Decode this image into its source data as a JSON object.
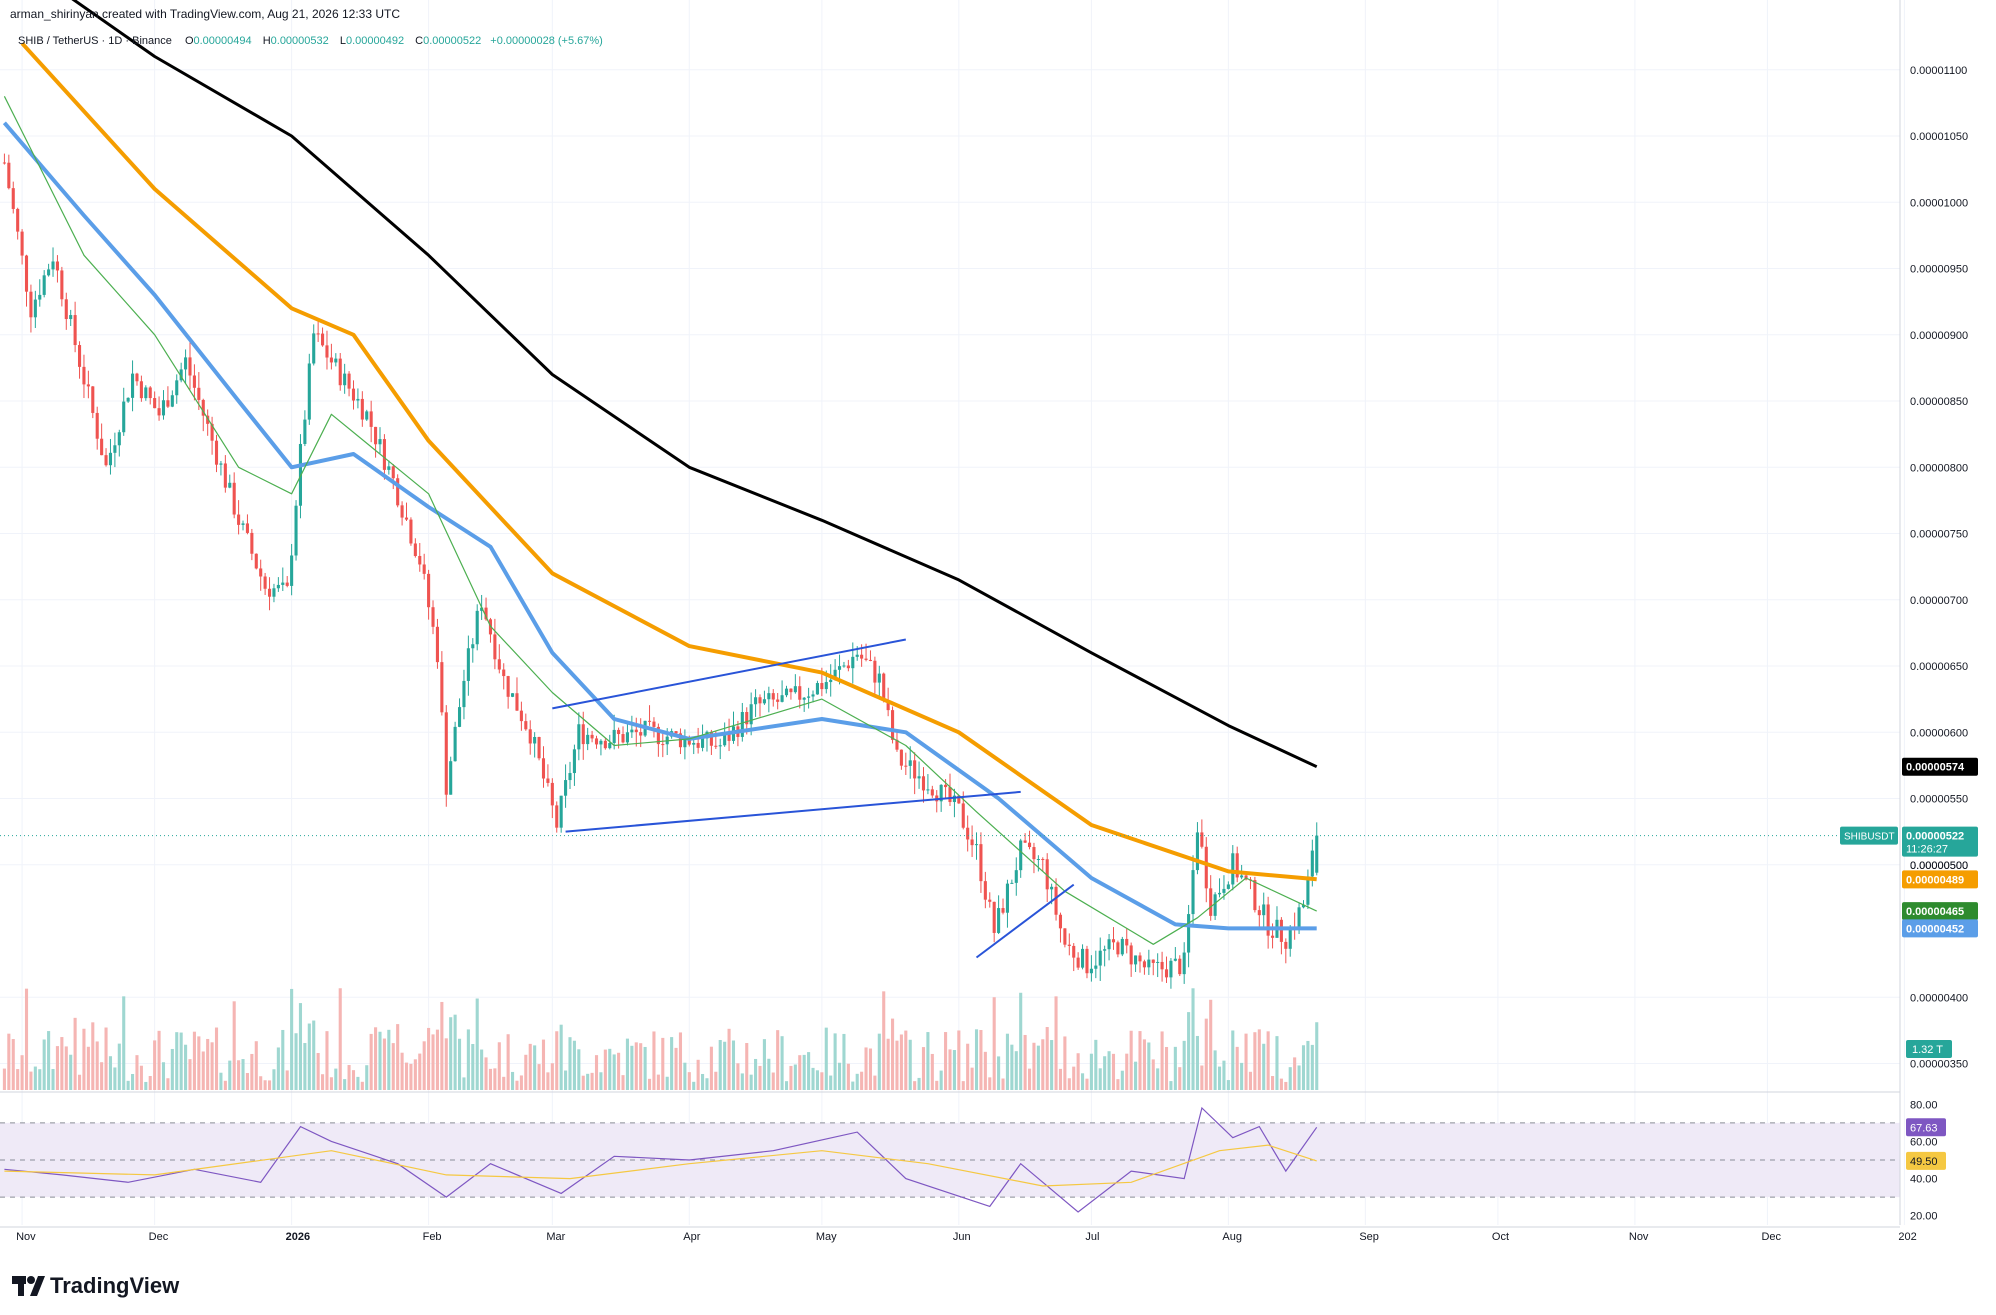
{
  "header": {
    "credit": "arman_shirinyan created with TradingView.com, Aug 21, 2026 12:33 UTC",
    "symbol": "SHIB / TetherUS · 1D · Binance",
    "o_label": "O",
    "o_value": "0.00000494",
    "h_label": "H",
    "h_value": "0.00000532",
    "l_label": "L",
    "l_value": "0.00000492",
    "c_label": "C",
    "c_value": "0.00000522",
    "change": "+0.00000028 (+5.67%)"
  },
  "footer": {
    "brand": "TradingView"
  },
  "colors": {
    "up": "#26a69a",
    "down": "#ef5350",
    "ma_black": "#000000",
    "ma_orange": "#f59d00",
    "ma_blue": "#5b9ee8",
    "ma_green": "#4caf50",
    "trendline": "#2954d8",
    "rsi": "#7e57c2",
    "rsi_ma": "#f5c842",
    "rsi_band": "#efeaf7"
  },
  "chart_data": {
    "type": "candlestick",
    "symbol": "SHIBUSDT",
    "timeframe": "1D",
    "price_axis": {
      "min": 3.3e-06,
      "max": 1.13e-05,
      "ticks": [
        "0.00001100",
        "0.00001050",
        "0.00001000",
        "0.00000950",
        "0.00000900",
        "0.00000850",
        "0.00000800",
        "0.00000750",
        "0.00000700",
        "0.00000650",
        "0.00000600",
        "0.00000550",
        "0.00000500",
        "0.00000400",
        "0.00000350"
      ]
    },
    "time_axis": {
      "start": "2025-10-27",
      "end": "2026-12-31",
      "ticks": [
        {
          "date": "2025-11-01",
          "label": "Nov"
        },
        {
          "date": "2025-12-01",
          "label": "Dec"
        },
        {
          "date": "2026-01-01",
          "label": "2026"
        },
        {
          "date": "2026-02-01",
          "label": "Feb"
        },
        {
          "date": "2026-03-01",
          "label": "Mar"
        },
        {
          "date": "2026-04-01",
          "label": "Apr"
        },
        {
          "date": "2026-05-01",
          "label": "May"
        },
        {
          "date": "2026-06-01",
          "label": "Jun"
        },
        {
          "date": "2026-07-01",
          "label": "Jul"
        },
        {
          "date": "2026-08-01",
          "label": "Aug"
        },
        {
          "date": "2026-09-01",
          "label": "Sep"
        },
        {
          "date": "2026-10-01",
          "label": "Oct"
        },
        {
          "date": "2026-11-01",
          "label": "Nov"
        },
        {
          "date": "2026-12-01",
          "label": "Dec"
        },
        {
          "date": "2027-01-01",
          "label": "202"
        }
      ]
    },
    "close_path": [
      [
        "2025-10-28",
        1.03e-05
      ],
      [
        "2025-11-03",
        9.2e-06
      ],
      [
        "2025-11-08",
        9.6e-06
      ],
      [
        "2025-11-14",
        8.8e-06
      ],
      [
        "2025-11-20",
        8e-06
      ],
      [
        "2025-11-26",
        8.7e-06
      ],
      [
        "2025-12-02",
        8.4e-06
      ],
      [
        "2025-12-08",
        8.8e-06
      ],
      [
        "2025-12-14",
        8.2e-06
      ],
      [
        "2025-12-20",
        7.6e-06
      ],
      [
        "2025-12-26",
        7.1e-06
      ],
      [
        "2025-12-31",
        7.05e-06
      ],
      [
        "2026-01-03",
        8.1e-06
      ],
      [
        "2026-01-06",
        9e-06
      ],
      [
        "2026-01-12",
        8.7e-06
      ],
      [
        "2026-01-18",
        8.4e-06
      ],
      [
        "2026-01-24",
        7.9e-06
      ],
      [
        "2026-01-30",
        7.3e-06
      ],
      [
        "2026-02-03",
        6.6e-06
      ],
      [
        "2026-02-05",
        5.6e-06
      ],
      [
        "2026-02-09",
        6.4e-06
      ],
      [
        "2026-02-13",
        7e-06
      ],
      [
        "2026-02-18",
        6.4e-06
      ],
      [
        "2026-02-24",
        6e-06
      ],
      [
        "2026-03-02",
        5.3e-06
      ],
      [
        "2026-03-07",
        6e-06
      ],
      [
        "2026-03-14",
        5.95e-06
      ],
      [
        "2026-03-22",
        6e-06
      ],
      [
        "2026-03-31",
        5.95e-06
      ],
      [
        "2026-04-08",
        5.9e-06
      ],
      [
        "2026-04-16",
        6.2e-06
      ],
      [
        "2026-04-24",
        6.25e-06
      ],
      [
        "2026-05-03",
        6.4e-06
      ],
      [
        "2026-05-09",
        6.6e-06
      ],
      [
        "2026-05-14",
        6.4e-06
      ],
      [
        "2026-05-18",
        5.8e-06
      ],
      [
        "2026-05-26",
        5.6e-06
      ],
      [
        "2026-06-01",
        5.4e-06
      ],
      [
        "2026-06-05",
        5.1e-06
      ],
      [
        "2026-06-09",
        4.5e-06
      ],
      [
        "2026-06-15",
        5.1e-06
      ],
      [
        "2026-06-20",
        5e-06
      ],
      [
        "2026-06-25",
        4.4e-06
      ],
      [
        "2026-06-30",
        4.25e-06
      ],
      [
        "2026-07-07",
        4.4e-06
      ],
      [
        "2026-07-14",
        4.2e-06
      ],
      [
        "2026-07-22",
        4.25e-06
      ],
      [
        "2026-07-25",
        5.3e-06
      ],
      [
        "2026-07-28",
        4.7e-06
      ],
      [
        "2026-08-02",
        5e-06
      ],
      [
        "2026-08-06",
        4.8e-06
      ],
      [
        "2026-08-10",
        4.55e-06
      ],
      [
        "2026-08-14",
        4.45e-06
      ],
      [
        "2026-08-18",
        4.7e-06
      ],
      [
        "2026-08-21",
        5.22e-06
      ]
    ],
    "series": [
      {
        "key": "ma_black",
        "points": [
          [
            "2025-11-01",
            1.18e-05
          ],
          [
            "2025-12-01",
            1.11e-05
          ],
          [
            "2026-01-01",
            1.05e-05
          ],
          [
            "2026-02-01",
            9.6e-06
          ],
          [
            "2026-03-01",
            8.7e-06
          ],
          [
            "2026-04-01",
            8e-06
          ],
          [
            "2026-05-01",
            7.6e-06
          ],
          [
            "2026-06-01",
            7.15e-06
          ],
          [
            "2026-07-01",
            6.6e-06
          ],
          [
            "2026-08-01",
            6.05e-06
          ],
          [
            "2026-08-21",
            5.74e-06
          ]
        ]
      },
      {
        "key": "ma_orange",
        "points": [
          [
            "2025-11-01",
            1.12e-05
          ],
          [
            "2025-12-01",
            1.01e-05
          ],
          [
            "2026-01-01",
            9.2e-06
          ],
          [
            "2026-01-15",
            9e-06
          ],
          [
            "2026-02-01",
            8.2e-06
          ],
          [
            "2026-03-01",
            7.2e-06
          ],
          [
            "2026-04-01",
            6.65e-06
          ],
          [
            "2026-05-01",
            6.45e-06
          ],
          [
            "2026-06-01",
            6e-06
          ],
          [
            "2026-07-01",
            5.3e-06
          ],
          [
            "2026-08-01",
            4.95e-06
          ],
          [
            "2026-08-21",
            4.89e-06
          ]
        ]
      },
      {
        "key": "ma_blue",
        "points": [
          [
            "2025-10-28",
            1.06e-05
          ],
          [
            "2025-11-15",
            9.9e-06
          ],
          [
            "2025-12-01",
            9.3e-06
          ],
          [
            "2025-12-20",
            8.5e-06
          ],
          [
            "2026-01-01",
            8e-06
          ],
          [
            "2026-01-15",
            8.1e-06
          ],
          [
            "2026-02-01",
            7.7e-06
          ],
          [
            "2026-02-15",
            7.4e-06
          ],
          [
            "2026-03-01",
            6.6e-06
          ],
          [
            "2026-03-15",
            6.1e-06
          ],
          [
            "2026-04-01",
            5.95e-06
          ],
          [
            "2026-05-01",
            6.1e-06
          ],
          [
            "2026-05-20",
            6e-06
          ],
          [
            "2026-06-10",
            5.5e-06
          ],
          [
            "2026-07-01",
            4.9e-06
          ],
          [
            "2026-07-20",
            4.55e-06
          ],
          [
            "2026-08-01",
            4.52e-06
          ],
          [
            "2026-08-21",
            4.52e-06
          ]
        ]
      },
      {
        "key": "ma_green",
        "points": [
          [
            "2025-10-28",
            1.08e-05
          ],
          [
            "2025-11-15",
            9.6e-06
          ],
          [
            "2025-12-01",
            9e-06
          ],
          [
            "2025-12-20",
            8e-06
          ],
          [
            "2026-01-01",
            7.8e-06
          ],
          [
            "2026-01-10",
            8.4e-06
          ],
          [
            "2026-02-01",
            7.8e-06
          ],
          [
            "2026-02-15",
            6.8e-06
          ],
          [
            "2026-03-01",
            6.3e-06
          ],
          [
            "2026-03-15",
            5.9e-06
          ],
          [
            "2026-04-01",
            5.95e-06
          ],
          [
            "2026-05-01",
            6.25e-06
          ],
          [
            "2026-05-20",
            5.9e-06
          ],
          [
            "2026-06-05",
            5.4e-06
          ],
          [
            "2026-06-25",
            4.8e-06
          ],
          [
            "2026-07-15",
            4.4e-06
          ],
          [
            "2026-07-25",
            4.6e-06
          ],
          [
            "2026-08-05",
            4.9e-06
          ],
          [
            "2026-08-21",
            4.65e-06
          ]
        ]
      }
    ],
    "trendlines": [
      {
        "from": [
          "2026-03-01",
          6.18e-06
        ],
        "to": [
          "2026-05-20",
          6.7e-06
        ]
      },
      {
        "from": [
          "2026-03-04",
          5.25e-06
        ],
        "to": [
          "2026-06-15",
          5.55e-06
        ]
      },
      {
        "from": [
          "2026-06-05",
          4.3e-06
        ],
        "to": [
          "2026-06-27",
          4.85e-06
        ]
      }
    ],
    "price_labels": [
      {
        "text": "0.00000574",
        "value": 5.74e-06,
        "color": "#000000"
      },
      {
        "text": "0.00000522",
        "value": 5.22e-06,
        "color": "#26a69a",
        "symbol": "SHIBUSDT",
        "countdown": "11:26:27"
      },
      {
        "text": "0.00000500",
        "value": 5e-06,
        "color": null
      },
      {
        "text": "0.00000489",
        "value": 4.89e-06,
        "color": "#f59d00"
      },
      {
        "text": "0.00000465",
        "value": 4.65e-06,
        "color": "#2e8b2e"
      },
      {
        "text": "0.00000452",
        "value": 4.52e-06,
        "color": "#5b9ee8"
      }
    ],
    "volume": {
      "last_label": "1.32 T"
    },
    "rsi": {
      "axis": [
        {
          "v": 80,
          "label": "80.00"
        },
        {
          "v": 60,
          "label": "60.00"
        },
        {
          "v": 40,
          "label": "40.00"
        },
        {
          "v": 20,
          "label": "20.00"
        }
      ],
      "upper": 70,
      "mid": 50,
      "lower": 30,
      "rsi_value": "67.63",
      "ma_value": "49.50",
      "path": [
        [
          "2025-10-28",
          45
        ],
        [
          "2025-11-10",
          42
        ],
        [
          "2025-11-25",
          38
        ],
        [
          "2025-12-10",
          45
        ],
        [
          "2025-12-25",
          38
        ],
        [
          "2026-01-03",
          68
        ],
        [
          "2026-01-10",
          60
        ],
        [
          "2026-01-25",
          48
        ],
        [
          "2026-02-05",
          30
        ],
        [
          "2026-02-15",
          48
        ],
        [
          "2026-03-03",
          32
        ],
        [
          "2026-03-15",
          52
        ],
        [
          "2026-04-01",
          50
        ],
        [
          "2026-04-20",
          55
        ],
        [
          "2026-05-09",
          65
        ],
        [
          "2026-05-20",
          40
        ],
        [
          "2026-06-08",
          25
        ],
        [
          "2026-06-15",
          48
        ],
        [
          "2026-06-28",
          22
        ],
        [
          "2026-07-10",
          44
        ],
        [
          "2026-07-22",
          40
        ],
        [
          "2026-07-26",
          78
        ],
        [
          "2026-08-02",
          62
        ],
        [
          "2026-08-08",
          68
        ],
        [
          "2026-08-14",
          44
        ],
        [
          "2026-08-21",
          67.63
        ]
      ],
      "ma_path": [
        [
          "2025-10-28",
          44
        ],
        [
          "2025-12-01",
          42
        ],
        [
          "2026-01-10",
          55
        ],
        [
          "2026-02-05",
          42
        ],
        [
          "2026-03-05",
          40
        ],
        [
          "2026-04-01",
          48
        ],
        [
          "2026-05-01",
          55
        ],
        [
          "2026-05-25",
          48
        ],
        [
          "2026-06-20",
          36
        ],
        [
          "2026-07-10",
          38
        ],
        [
          "2026-07-30",
          55
        ],
        [
          "2026-08-10",
          58
        ],
        [
          "2026-08-21",
          49.5
        ]
      ]
    }
  }
}
